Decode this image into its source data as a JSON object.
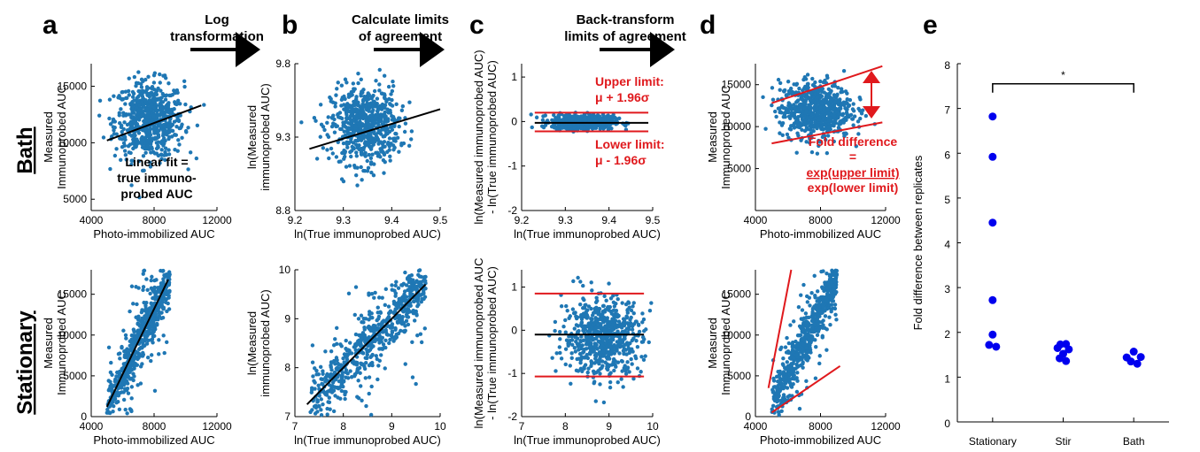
{
  "figure": {
    "panel_letters": [
      "a",
      "b",
      "c",
      "d",
      "e"
    ],
    "row_labels": {
      "top": "Bath",
      "bottom": "Stationary"
    },
    "steps": {
      "log": [
        "Log",
        "transformation"
      ],
      "limits": [
        "Calculate limits",
        "of agreement"
      ],
      "back": [
        "Back-transform",
        "limits of agreement"
      ]
    },
    "annotations": {
      "linear_fit": [
        "Linear fit =",
        "true immuno-",
        "probed AUC"
      ],
      "upper_limit": [
        "Upper limit:",
        "μ + 1.96σ"
      ],
      "lower_limit": [
        "Lower limit:",
        "μ - 1.96σ"
      ],
      "fold_difference": [
        "Fold difference",
        "=",
        "exp(upper limit)",
        "exp(lower limit)"
      ],
      "significance": "*"
    },
    "colors": {
      "points": "#1f77b4",
      "fit": "#000000",
      "limits": "#e0191d",
      "panel_e": "#0000ee"
    }
  },
  "chart_data": [
    {
      "id": "a-bath",
      "type": "scatter",
      "xlabel": "Photo-immobilized AUC",
      "ylabel": [
        "Measured",
        "Immunoprobed AUC"
      ],
      "xlim": [
        4000,
        12000
      ],
      "ylim": [
        4000,
        17000
      ],
      "xticks": [
        4000,
        8000,
        12000
      ],
      "xtick_labels": [
        "4000",
        "8000",
        "12000"
      ],
      "yticks": [
        5000,
        10000,
        15000
      ],
      "ytick_labels": [
        "5000",
        "10000",
        "15000"
      ],
      "cloud": {
        "cx": 7700,
        "cy": 12000,
        "sx": 1100,
        "sy": 1700,
        "n": 650
      },
      "fit_line": [
        [
          5000,
          10200
        ],
        [
          11000,
          13300
        ]
      ]
    },
    {
      "id": "b-bath",
      "type": "scatter",
      "xlabel": "ln(True immunoprobed AUC)",
      "ylabel": [
        "ln(Measured",
        "immunoprobed AUC)"
      ],
      "xlim": [
        9.2,
        9.5
      ],
      "ylim": [
        8.8,
        9.8
      ],
      "xticks": [
        9.2,
        9.3,
        9.4,
        9.5
      ],
      "xtick_labels": [
        "9.2",
        "9.3",
        "9.4",
        "9.5"
      ],
      "yticks": [
        8.8,
        9.3,
        9.8
      ],
      "ytick_labels": [
        "8.8",
        "9.3",
        "9.8"
      ],
      "cloud": {
        "cx": 9.345,
        "cy": 9.38,
        "sx": 0.035,
        "sy": 0.13,
        "n": 650
      },
      "fit_line": [
        [
          9.23,
          9.22
        ],
        [
          9.5,
          9.49
        ]
      ]
    },
    {
      "id": "c-bath",
      "type": "scatter",
      "xlabel": "ln(True immunoprobed AUC)",
      "ylabel": [
        "ln(Measured immunoprobed AUC)",
        "- ln(True immunoprobed AUC)"
      ],
      "xlim": [
        9.2,
        9.5
      ],
      "ylim": [
        -2,
        1.3
      ],
      "xticks": [
        9.2,
        9.3,
        9.4,
        9.5
      ],
      "xtick_labels": [
        "9.2",
        "9.3",
        "9.4",
        "9.5"
      ],
      "yticks": [
        -2,
        -1,
        0,
        1
      ],
      "ytick_labels": [
        "-2",
        "-1",
        "0",
        "1"
      ],
      "cloud": {
        "cx": 9.34,
        "cy": -0.01,
        "sx": 0.035,
        "sy": 0.08,
        "n": 650
      },
      "fit_line": [
        [
          9.23,
          -0.03
        ],
        [
          9.49,
          -0.03
        ]
      ],
      "upper_limit": 0.2,
      "lower_limit": -0.22
    },
    {
      "id": "d-bath",
      "type": "scatter",
      "xlabel": "Photo-immobilized AUC",
      "ylabel": [
        "Measured",
        "Immunoprobed AUC"
      ],
      "xlim": [
        4000,
        12000
      ],
      "ylim": [
        0,
        17500
      ],
      "xticks": [
        4000,
        8000,
        12000
      ],
      "xtick_labels": [
        "4000",
        "8000",
        "12000"
      ],
      "yticks": [
        5000,
        10000,
        15000
      ],
      "ytick_labels": [
        "5000",
        "10000",
        "15000"
      ],
      "cloud": {
        "cx": 7700,
        "cy": 12000,
        "sx": 1100,
        "sy": 1700,
        "n": 650
      },
      "limit_lines": [
        [
          [
            5000,
            12800
          ],
          [
            11800,
            17200
          ]
        ],
        [
          [
            5000,
            8000
          ],
          [
            11800,
            10500
          ]
        ]
      ]
    },
    {
      "id": "a-stationary",
      "type": "scatter",
      "xlabel": "Photo-immobilized AUC",
      "ylabel": [
        "Measured",
        "Immunoprobed AUC"
      ],
      "xlim": [
        4000,
        12000
      ],
      "ylim": [
        0,
        18000
      ],
      "xticks": [
        4000,
        8000,
        12000
      ],
      "xtick_labels": [
        "4000",
        "8000",
        "12000"
      ],
      "yticks": [
        0,
        5000,
        10000,
        15000
      ],
      "ytick_labels": [
        "0",
        "5000",
        "10000",
        "15000"
      ],
      "linear_cloud": {
        "x0": 5000,
        "x1": 9000,
        "slope": 4.0,
        "intercept": -18800,
        "jitter": 2200,
        "n": 650
      },
      "fit_line": [
        [
          5000,
          1200
        ],
        [
          8900,
          16800
        ]
      ]
    },
    {
      "id": "b-stationary",
      "type": "scatter",
      "xlabel": "ln(True immunoprobed AUC)",
      "ylabel": [
        "ln(Measured",
        "immunoprobed AUC)"
      ],
      "xlim": [
        7,
        10
      ],
      "ylim": [
        7,
        10
      ],
      "xticks": [
        7,
        8,
        9,
        10
      ],
      "xtick_labels": [
        "7",
        "8",
        "9",
        "10"
      ],
      "yticks": [
        7,
        8,
        9,
        10
      ],
      "ytick_labels": [
        "7",
        "8",
        "9",
        "10"
      ],
      "linear_cloud": {
        "x0": 7.3,
        "x1": 9.7,
        "slope": 1.0,
        "intercept": 0.0,
        "jitter": 0.45,
        "n": 650
      },
      "fit_line": [
        [
          7.25,
          7.25
        ],
        [
          9.7,
          9.7
        ]
      ]
    },
    {
      "id": "c-stationary",
      "type": "scatter",
      "xlabel": "ln(True immunoprobed AUC)",
      "ylabel": [
        "ln(Measured immunoprobed AUC",
        "- ln(True immunoprobed AUC)"
      ],
      "xlim": [
        7,
        10
      ],
      "ylim": [
        -2,
        1.4
      ],
      "xticks": [
        7,
        8,
        9,
        10
      ],
      "xtick_labels": [
        "7",
        "8",
        "9",
        "10"
      ],
      "yticks": [
        -2,
        -1,
        0,
        1
      ],
      "ytick_labels": [
        "-2",
        "-1",
        "0",
        "1"
      ],
      "cloud": {
        "cx": 8.85,
        "cy": -0.15,
        "sx": 0.45,
        "sy": 0.45,
        "n": 650
      },
      "fit_line": [
        [
          7.3,
          -0.1
        ],
        [
          9.8,
          -0.1
        ]
      ],
      "upper_limit": 0.85,
      "lower_limit": -1.07
    },
    {
      "id": "d-stationary",
      "type": "scatter",
      "xlabel": "Photo-immobilized AUC",
      "ylabel": [
        "Measured",
        "Immunoprobed AUC"
      ],
      "xlim": [
        4000,
        12000
      ],
      "ylim": [
        0,
        18000
      ],
      "xticks": [
        4000,
        8000,
        12000
      ],
      "xtick_labels": [
        "4000",
        "8000",
        "12000"
      ],
      "yticks": [
        0,
        5000,
        10000,
        15000
      ],
      "ytick_labels": [
        "0",
        "5000",
        "10000",
        "15000"
      ],
      "linear_cloud": {
        "x0": 5000,
        "x1": 9000,
        "slope": 4.0,
        "intercept": -18800,
        "jitter": 2200,
        "n": 650
      },
      "limit_lines": [
        [
          [
            4800,
            3500
          ],
          [
            6200,
            18000
          ]
        ],
        [
          [
            5000,
            500
          ],
          [
            9200,
            6200
          ]
        ]
      ]
    },
    {
      "id": "e",
      "type": "scatter",
      "categories": [
        "Stationary",
        "Stir",
        "Bath"
      ],
      "ylabel": "Fold difference between replicates",
      "ylim": [
        0,
        8
      ],
      "yticks": [
        0,
        1,
        2,
        3,
        4,
        5,
        6,
        7,
        8
      ],
      "ytick_labels": [
        "0",
        "1",
        "2",
        "3",
        "4",
        "5",
        "6",
        "7",
        "8"
      ],
      "points": [
        {
          "x": 0,
          "y": 6.82
        },
        {
          "x": 0,
          "y": 5.92
        },
        {
          "x": 0,
          "y": 4.45
        },
        {
          "x": 0,
          "y": 2.72
        },
        {
          "x": 0,
          "y": 1.95
        },
        {
          "x": -0.05,
          "y": 1.72
        },
        {
          "x": 0.05,
          "y": 1.68
        },
        {
          "x": 0.96,
          "y": 1.73
        },
        {
          "x": 1.04,
          "y": 1.74
        },
        {
          "x": 0.92,
          "y": 1.65
        },
        {
          "x": 1.08,
          "y": 1.62
        },
        {
          "x": 1.0,
          "y": 1.52
        },
        {
          "x": 0.95,
          "y": 1.42
        },
        {
          "x": 1.04,
          "y": 1.36
        },
        {
          "x": 1.9,
          "y": 1.44
        },
        {
          "x": 2.0,
          "y": 1.57
        },
        {
          "x": 2.1,
          "y": 1.45
        },
        {
          "x": 1.96,
          "y": 1.35
        },
        {
          "x": 2.05,
          "y": 1.3
        }
      ],
      "significance_bracket": {
        "from": 0,
        "to": 2,
        "y": 7.55,
        "label": "*"
      }
    }
  ]
}
